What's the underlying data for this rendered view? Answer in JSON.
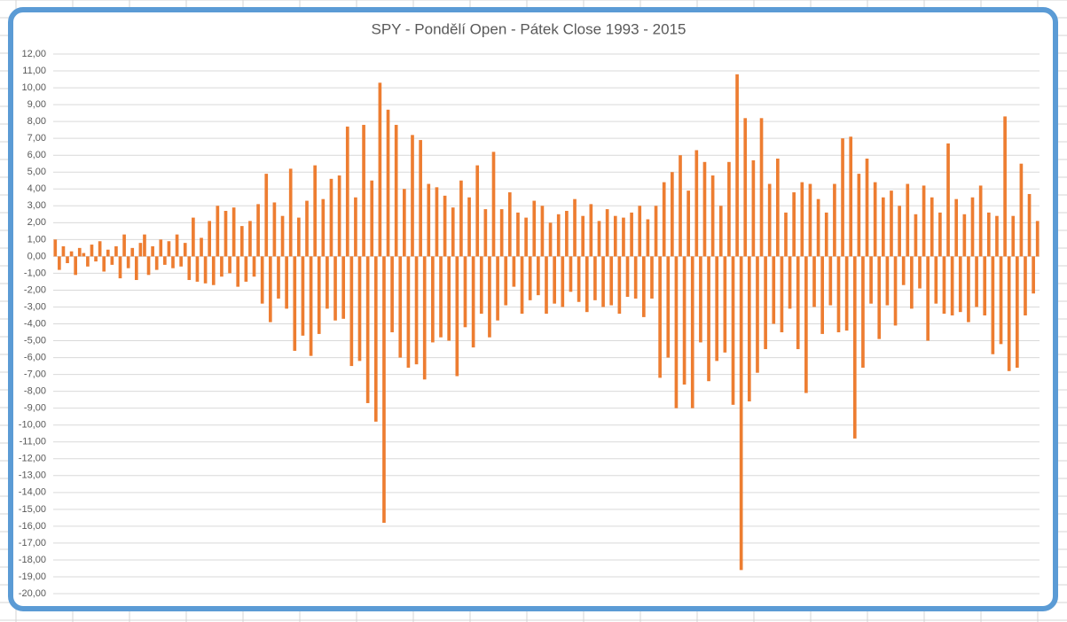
{
  "chart_data": {
    "type": "bar",
    "title": "SPY - Pondělí Open - Pátek Close 1993 - 2015",
    "color": "#ed7d31",
    "grid": true,
    "ylim": [
      -20,
      12
    ],
    "yticks": [
      {
        "value": 12,
        "label": "12,00"
      },
      {
        "value": 11,
        "label": "11,00"
      },
      {
        "value": 10,
        "label": "10,00"
      },
      {
        "value": 9,
        "label": "9,00"
      },
      {
        "value": 8,
        "label": "8,00"
      },
      {
        "value": 7,
        "label": "7,00"
      },
      {
        "value": 6,
        "label": "6,00"
      },
      {
        "value": 5,
        "label": "5,00"
      },
      {
        "value": 4,
        "label": "4,00"
      },
      {
        "value": 3,
        "label": "3,00"
      },
      {
        "value": 2,
        "label": "2,00"
      },
      {
        "value": 1,
        "label": "1,00"
      },
      {
        "value": 0,
        "label": "0,00"
      },
      {
        "value": -1,
        "label": "-1,00"
      },
      {
        "value": -2,
        "label": "-2,00"
      },
      {
        "value": -3,
        "label": "-3,00"
      },
      {
        "value": -4,
        "label": "-4,00"
      },
      {
        "value": -5,
        "label": "-5,00"
      },
      {
        "value": -6,
        "label": "-6,00"
      },
      {
        "value": -7,
        "label": "-7,00"
      },
      {
        "value": -8,
        "label": "-8,00"
      },
      {
        "value": -9,
        "label": "-9,00"
      },
      {
        "value": -10,
        "label": "-10,00"
      },
      {
        "value": -11,
        "label": "-11,00"
      },
      {
        "value": -12,
        "label": "-12,00"
      },
      {
        "value": -13,
        "label": "-13,00"
      },
      {
        "value": -14,
        "label": "-14,00"
      },
      {
        "value": -15,
        "label": "-15,00"
      },
      {
        "value": -16,
        "label": "-16,00"
      },
      {
        "value": -17,
        "label": "-17,00"
      },
      {
        "value": -18,
        "label": "-18,00"
      },
      {
        "value": -19,
        "label": "-19,00"
      },
      {
        "value": -20,
        "label": "-20,00"
      }
    ],
    "values": [
      1.0,
      -0.8,
      0.6,
      -0.4,
      0.3,
      -1.1,
      0.5,
      0.2,
      -0.6,
      0.7,
      -0.3,
      0.9,
      -0.9,
      0.4,
      -0.5,
      0.6,
      -1.3,
      1.3,
      -0.7,
      0.5,
      -1.4,
      0.8,
      1.3,
      -1.1,
      0.6,
      -0.8,
      1.0,
      -0.5,
      0.9,
      -0.7,
      1.3,
      -0.6,
      0.8,
      -1.4,
      2.3,
      -1.5,
      1.1,
      -1.6,
      2.1,
      -1.7,
      3.0,
      -1.2,
      2.7,
      -1.0,
      2.9,
      -1.8,
      1.8,
      -1.5,
      2.1,
      -1.2,
      3.1,
      -2.8,
      4.9,
      -3.9,
      3.2,
      -2.5,
      2.4,
      -3.1,
      5.2,
      -5.6,
      2.3,
      -4.7,
      3.3,
      -5.9,
      5.4,
      -4.6,
      3.4,
      -3.1,
      4.6,
      -3.8,
      4.8,
      -3.7,
      7.7,
      -6.5,
      3.5,
      -6.2,
      7.8,
      -8.7,
      4.5,
      -9.8,
      10.3,
      -15.8,
      8.7,
      -4.5,
      7.8,
      -6.0,
      4.0,
      -6.6,
      7.2,
      -6.4,
      6.9,
      -7.3,
      4.3,
      -5.1,
      4.1,
      -4.8,
      3.6,
      -5.0,
      2.9,
      -7.1,
      4.5,
      -4.2,
      3.5,
      -5.4,
      5.4,
      -3.4,
      2.8,
      -4.8,
      6.2,
      -3.8,
      2.8,
      -2.9,
      3.8,
      -1.8,
      2.6,
      -3.4,
      2.3,
      -2.6,
      3.3,
      -2.3,
      3.0,
      -3.4,
      2.0,
      -2.8,
      2.5,
      -3.0,
      2.7,
      -2.1,
      3.4,
      -2.7,
      2.4,
      -3.3,
      3.1,
      -2.6,
      2.1,
      -3.0,
      2.8,
      -2.9,
      2.4,
      -3.4,
      2.3,
      -2.4,
      2.6,
      -2.5,
      3.0,
      -3.6,
      2.2,
      -2.5,
      3.0,
      -7.2,
      4.4,
      -6.0,
      5.0,
      -9.0,
      6.0,
      -7.6,
      3.9,
      -9.0,
      6.3,
      -5.1,
      5.6,
      -7.4,
      4.8,
      -6.2,
      3.0,
      -5.7,
      5.6,
      -8.8,
      10.8,
      -18.6,
      8.2,
      -8.6,
      5.7,
      -6.9,
      8.2,
      -5.5,
      4.3,
      -4.0,
      5.8,
      -4.5,
      2.6,
      -3.1,
      3.8,
      -5.5,
      4.4,
      -8.1,
      4.3,
      -3.0,
      3.4,
      -4.6,
      2.6,
      -2.9,
      4.3,
      -4.5,
      7.0,
      -4.4,
      7.1,
      -10.8,
      4.9,
      -6.6,
      5.8,
      -2.8,
      4.4,
      -4.9,
      3.5,
      -2.9,
      3.9,
      -4.1,
      3.0,
      -1.7,
      4.3,
      -3.1,
      2.5,
      -1.9,
      4.2,
      -5.0,
      3.5,
      -2.8,
      2.6,
      -3.4,
      6.7,
      -3.5,
      3.4,
      -3.3,
      2.5,
      -3.9,
      3.5,
      -3.0,
      4.2,
      -3.5,
      2.6,
      -5.8,
      2.4,
      -5.2,
      8.3,
      -6.8,
      2.4,
      -6.6,
      5.5,
      -3.5,
      3.7,
      -2.2,
      2.1
    ]
  }
}
